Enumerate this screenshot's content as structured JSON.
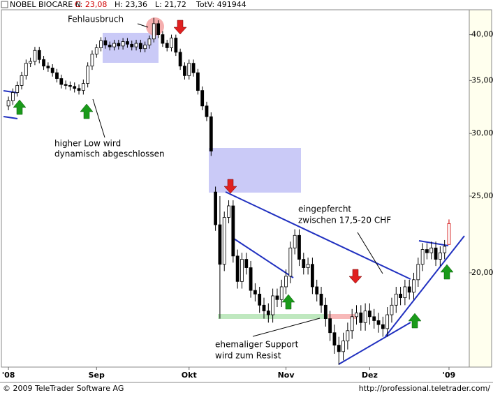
{
  "chart_data": {
    "type": "candlestick",
    "title": "NOBEL BIOCARE N",
    "quote": [
      "C: 23,08",
      "H: 23,36",
      "L: 21,72",
      "TotV: 491944"
    ],
    "log_scale": true,
    "ylim": [
      15.2,
      43
    ],
    "yticks": [
      {
        "value": 20,
        "label": "20,00"
      },
      {
        "value": 25,
        "label": "25,00"
      },
      {
        "value": 30,
        "label": "30,00"
      },
      {
        "value": 35,
        "label": "35,00"
      },
      {
        "value": 40,
        "label": "40,00"
      }
    ],
    "xlim": [
      -1.6,
      104.6
    ],
    "xticks": [
      {
        "value": 0,
        "label": "'08"
      },
      {
        "value": 20,
        "label": "Sep"
      },
      {
        "value": 41,
        "label": "Okt"
      },
      {
        "value": 63,
        "label": "Nov"
      },
      {
        "value": 82,
        "label": "Dez"
      },
      {
        "value": 100,
        "label": "'09"
      }
    ],
    "open": [
      32.5,
      33.0,
      33.8,
      34.5,
      35.5,
      36.8,
      37.0,
      38.2,
      37.2,
      36.5,
      36.3,
      35.8,
      35.2,
      34.6,
      34.5,
      34.4,
      34.2,
      34.0,
      34.7,
      36.5,
      37.8,
      38.5,
      39.3,
      38.8,
      38.6,
      39.0,
      38.7,
      39.2,
      38.9,
      38.6,
      39.0,
      38.4,
      38.8,
      39.5,
      41.3,
      40.0,
      39.0,
      38.5,
      39.6,
      38.0,
      36.5,
      35.5,
      36.8,
      35.8,
      34.0,
      32.5,
      31.5,
      25.3,
      23.0,
      20.5,
      23.5,
      24.3,
      21.0,
      19.5,
      20.8,
      20.3,
      19.0,
      18.8,
      18.2,
      17.9,
      17.7,
      18.7,
      18.5,
      19.2,
      19.8,
      21.5,
      22.3,
      20.8,
      20.3,
      20.5,
      19.2,
      18.8,
      18.2,
      17.5,
      16.8,
      16.2,
      15.9,
      16.4,
      16.9,
      17.6,
      17.8,
      17.3,
      17.9,
      17.6,
      17.4,
      17.2,
      17.0,
      17.7,
      18.2,
      18.8,
      18.6,
      19.2,
      18.9,
      19.6,
      20.5,
      21.4,
      21.2,
      21.5,
      20.8,
      21.2,
      21.72
    ],
    "high": [
      33.4,
      34.2,
      34.9,
      35.9,
      37.2,
      37.4,
      38.6,
      38.6,
      37.6,
      36.9,
      36.7,
      36.2,
      35.6,
      35.0,
      34.9,
      34.8,
      34.6,
      35.1,
      36.9,
      38.2,
      38.9,
      39.7,
      39.7,
      39.2,
      39.4,
      39.4,
      39.6,
      39.6,
      39.3,
      39.4,
      39.4,
      39.2,
      39.9,
      42.0,
      41.7,
      40.4,
      39.4,
      40.0,
      40.0,
      38.4,
      36.9,
      37.2,
      37.2,
      36.2,
      34.4,
      32.9,
      31.9,
      25.7,
      25.0,
      23.9,
      24.7,
      24.7,
      21.4,
      21.2,
      21.2,
      20.7,
      19.4,
      19.2,
      18.6,
      18.3,
      19.1,
      19.1,
      19.6,
      20.2,
      21.9,
      22.7,
      22.7,
      21.2,
      20.9,
      20.9,
      19.6,
      19.2,
      18.6,
      17.9,
      17.2,
      16.6,
      16.8,
      17.3,
      18.0,
      18.2,
      18.2,
      18.3,
      18.3,
      18.0,
      17.8,
      17.6,
      18.1,
      18.6,
      19.2,
      19.2,
      19.6,
      19.6,
      20.0,
      20.9,
      21.8,
      21.8,
      21.9,
      21.9,
      21.6,
      22.0,
      23.36
    ],
    "low": [
      32.1,
      32.6,
      33.4,
      34.1,
      35.1,
      36.4,
      36.6,
      36.8,
      36.1,
      35.9,
      35.4,
      34.8,
      34.2,
      34.1,
      34.0,
      33.8,
      33.6,
      33.6,
      34.3,
      36.1,
      37.4,
      38.1,
      38.4,
      38.2,
      38.2,
      38.3,
      38.3,
      38.5,
      38.2,
      38.2,
      38.0,
      38.0,
      38.4,
      39.1,
      39.6,
      38.6,
      38.1,
      38.1,
      37.6,
      36.1,
      35.1,
      35.1,
      35.4,
      33.6,
      32.1,
      31.1,
      28.1,
      22.6,
      17.5,
      20.1,
      23.1,
      20.6,
      19.1,
      19.1,
      19.9,
      18.6,
      18.4,
      17.8,
      17.5,
      17.3,
      17.3,
      18.1,
      18.1,
      18.8,
      19.4,
      21.1,
      20.4,
      19.9,
      19.9,
      18.8,
      18.4,
      17.8,
      17.1,
      16.4,
      15.8,
      15.3,
      15.5,
      16.0,
      16.5,
      17.2,
      16.9,
      16.9,
      17.2,
      17.0,
      16.8,
      16.6,
      16.6,
      17.3,
      17.8,
      18.2,
      18.2,
      18.5,
      18.5,
      19.2,
      20.1,
      20.8,
      20.8,
      20.4,
      20.4,
      20.8,
      21.72
    ],
    "close": [
      33.0,
      33.8,
      34.5,
      35.5,
      36.8,
      37.0,
      38.2,
      37.2,
      36.5,
      36.3,
      35.8,
      35.2,
      34.6,
      34.5,
      34.4,
      34.2,
      34.0,
      34.7,
      36.5,
      37.8,
      38.5,
      39.3,
      38.8,
      38.6,
      39.0,
      38.7,
      39.2,
      38.9,
      38.6,
      39.0,
      38.4,
      38.8,
      39.5,
      41.3,
      40.0,
      39.0,
      38.5,
      39.6,
      38.0,
      36.5,
      35.5,
      36.8,
      35.8,
      34.0,
      32.5,
      31.5,
      28.5,
      23.0,
      20.5,
      23.5,
      24.3,
      21.0,
      19.5,
      20.8,
      20.3,
      19.0,
      18.8,
      18.2,
      17.9,
      17.7,
      18.7,
      18.5,
      19.2,
      19.8,
      21.5,
      22.3,
      20.8,
      20.3,
      20.5,
      19.2,
      18.8,
      18.2,
      17.5,
      16.8,
      16.2,
      15.9,
      16.4,
      16.9,
      17.6,
      17.8,
      17.3,
      17.9,
      17.6,
      17.4,
      17.2,
      17.0,
      17.7,
      18.2,
      18.8,
      18.6,
      19.2,
      18.9,
      19.6,
      20.5,
      21.4,
      21.2,
      21.5,
      20.8,
      21.2,
      21.6,
      23.08
    ],
    "annotations": [
      "Fehlausbruch",
      "higher Low wird",
      "dynamisch abgeschlossen",
      "eingepfercht",
      "zwischen 17,5-20 CHF",
      "ehemaliger Support",
      "wird zum Resist"
    ],
    "footer": [
      "© 2009 TeleTrader Software AG",
      "http://professional.teletrader.com/"
    ]
  }
}
